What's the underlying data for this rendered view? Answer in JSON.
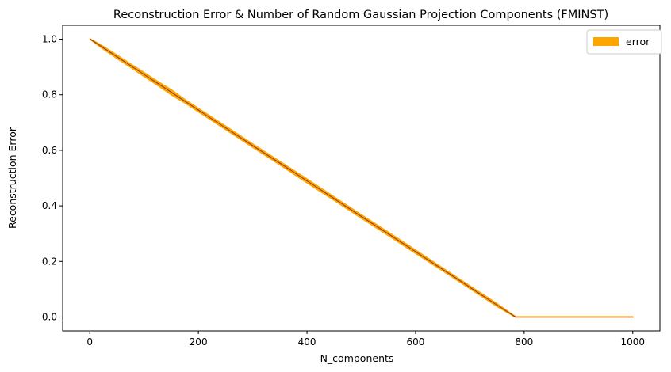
{
  "chart_data": {
    "type": "area",
    "title": "Reconstruction Error & Number of Random Gaussian Projection Components (FMINST)",
    "xlabel": "N_components",
    "ylabel": "Reconstruction Error",
    "xlim": [
      -50,
      1050
    ],
    "ylim": [
      -0.05,
      1.05
    ],
    "xticks": [
      0,
      200,
      400,
      600,
      800,
      1000
    ],
    "yticks": [
      0.0,
      0.2,
      0.4,
      0.6,
      0.8,
      1.0
    ],
    "xtick_labels": [
      "0",
      "200",
      "400",
      "600",
      "800",
      "1000"
    ],
    "ytick_labels": [
      "0.0",
      "0.2",
      "0.4",
      "0.6",
      "0.8",
      "1.0"
    ],
    "grid": false,
    "legend_position": "top-right",
    "series": [
      {
        "name": "error",
        "fill_color": "#FFA500",
        "line_color": "#8B3A2A",
        "x": [
          1,
          25,
          50,
          75,
          100,
          125,
          150,
          175,
          200,
          250,
          300,
          350,
          400,
          450,
          500,
          550,
          600,
          650,
          700,
          750,
          784,
          800,
          850,
          900,
          950,
          1000
        ],
        "y": [
          1.0,
          0.969,
          0.937,
          0.905,
          0.873,
          0.841,
          0.809,
          0.777,
          0.745,
          0.681,
          0.617,
          0.554,
          0.49,
          0.426,
          0.362,
          0.299,
          0.235,
          0.171,
          0.107,
          0.043,
          0.0,
          0.0,
          0.0,
          0.0,
          0.0,
          0.0
        ],
        "y_upper": [
          1.0,
          0.973,
          0.942,
          0.91,
          0.879,
          0.847,
          0.817,
          0.782,
          0.75,
          0.686,
          0.622,
          0.559,
          0.496,
          0.431,
          0.367,
          0.304,
          0.24,
          0.175,
          0.111,
          0.047,
          0.0,
          0.0,
          0.0,
          0.0,
          0.0,
          0.0
        ],
        "y_lower": [
          1.0,
          0.965,
          0.932,
          0.9,
          0.867,
          0.835,
          0.801,
          0.772,
          0.74,
          0.676,
          0.612,
          0.549,
          0.484,
          0.421,
          0.357,
          0.294,
          0.23,
          0.167,
          0.103,
          0.039,
          0.0,
          0.0,
          0.0,
          0.0,
          0.0,
          0.0
        ]
      }
    ]
  }
}
